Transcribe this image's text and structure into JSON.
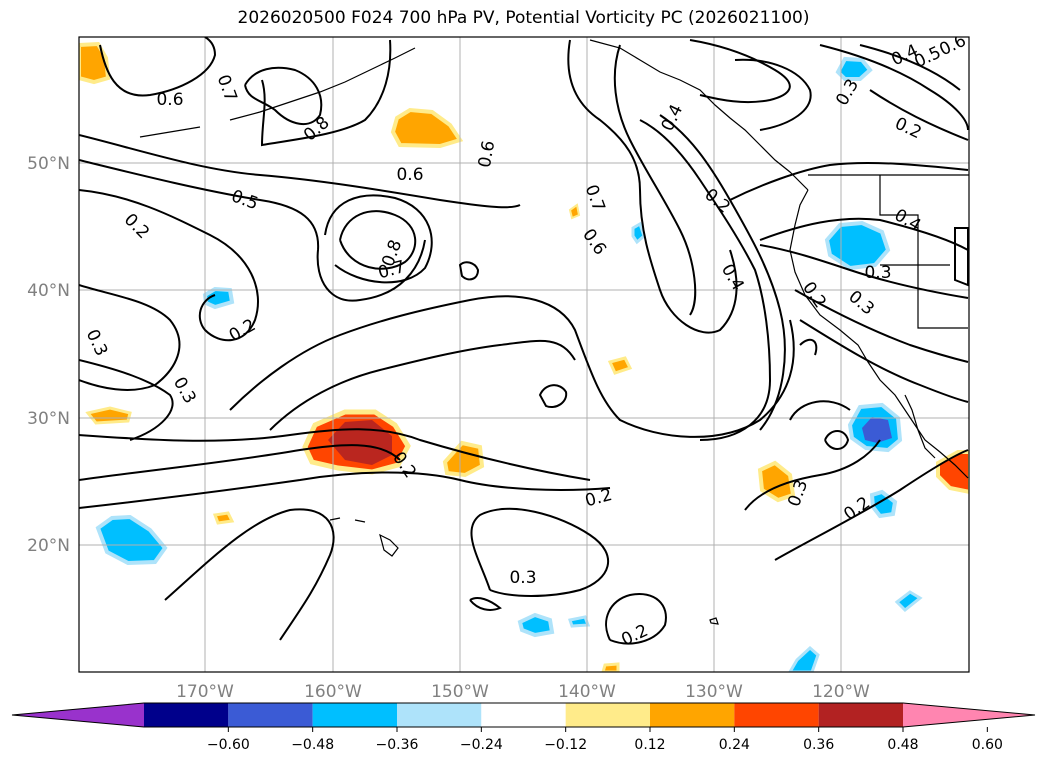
{
  "title": "2026020500 F024 700 hPa PV, Potential Vorticity PC (2026021100)",
  "map": {
    "lat_labels": [
      "50°N",
      "40°N",
      "30°N",
      "20°N"
    ],
    "lon_labels": [
      "170°W",
      "160°W",
      "150°W",
      "140°W",
      "130°W",
      "120°W"
    ],
    "contour_labels": [
      "0.6",
      "0.7",
      "0.8",
      "0.6",
      "0.6",
      "0.5",
      "0.2",
      "0.8",
      "0.7",
      "0.2",
      "0.3",
      "0.3",
      "0.2",
      "0.2",
      "0.3",
      "0.2",
      "0.4",
      "0.5",
      "0.2",
      "0.4",
      "0.2",
      "0.3",
      "0.7",
      "0.6",
      "0.4",
      "0.2",
      "0.3",
      "0.2",
      "0.3",
      "0.4",
      "0.3",
      "0.6"
    ]
  },
  "colorbar": {
    "ticks": [
      "−0.60",
      "−0.48",
      "−0.36",
      "−0.24",
      "−0.12",
      "0.12",
      "0.24",
      "0.36",
      "0.48",
      "0.60"
    ],
    "colors": [
      "#9932cc",
      "#00008b",
      "#3b5bd5",
      "#00bfff",
      "#aee3fa",
      "#ffffff",
      "#ffeb8a",
      "#ffa500",
      "#ff4500",
      "#b22222",
      "#ff85b0"
    ]
  },
  "colors": {
    "grid": "#b0b0b0",
    "contour": "#000000",
    "tick_label": "#808080"
  }
}
